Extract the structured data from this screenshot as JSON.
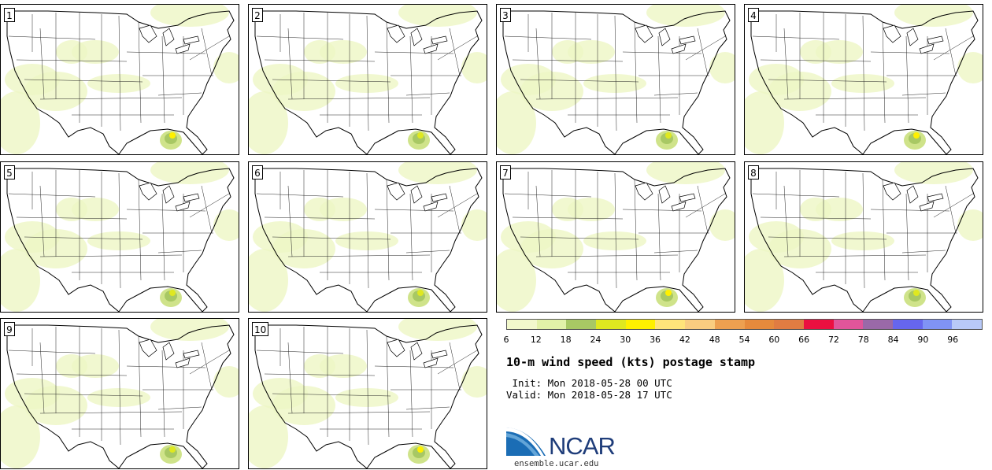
{
  "panels": [
    {
      "label": "1"
    },
    {
      "label": "2"
    },
    {
      "label": "3"
    },
    {
      "label": "4"
    },
    {
      "label": "5"
    },
    {
      "label": "6"
    },
    {
      "label": "7"
    },
    {
      "label": "8"
    },
    {
      "label": "9"
    },
    {
      "label": "10"
    }
  ],
  "colorbar": {
    "ticks": [
      "6",
      "12",
      "18",
      "24",
      "30",
      "36",
      "42",
      "48",
      "54",
      "60",
      "66",
      "72",
      "78",
      "84",
      "90",
      "96"
    ],
    "colors": [
      "#f2f8cc",
      "#e2f1a8",
      "#a8c864",
      "#dfe820",
      "#fff000",
      "#ffe47a",
      "#f9cd80",
      "#eda050",
      "#e68a3c",
      "#e07c42",
      "#eb1040",
      "#e0559a",
      "#9a69a8",
      "#6666ee",
      "#8093f5",
      "#b8c9f8"
    ]
  },
  "title": "10-m wind speed (kts) postage stamp",
  "init": " Init: Mon 2018-05-28 00 UTC",
  "valid": "Valid: Mon 2018-05-28 17 UTC",
  "logo": {
    "text": "NCAR",
    "site": "ensemble.ucar.edu"
  }
}
